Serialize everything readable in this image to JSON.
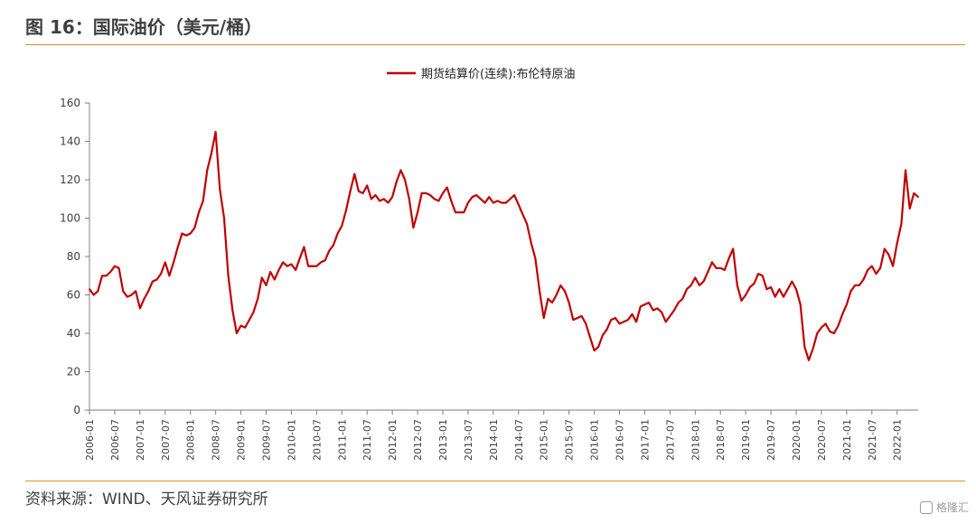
{
  "header": {
    "title": "图 16：国际油价（美元/桶）"
  },
  "footer": {
    "source": "资料来源：WIND、天风证券研究所",
    "watermark": "格隆汇"
  },
  "colors": {
    "accent_rule": "#E98A2E",
    "series": "#C00000",
    "axis": "#7f7f7f"
  },
  "chart_data": {
    "type": "line",
    "title": "",
    "xlabel": "",
    "ylabel": "",
    "ylim": [
      0,
      160
    ],
    "yticks": [
      0,
      20,
      40,
      60,
      80,
      100,
      120,
      140,
      160
    ],
    "xlim": [
      "2006-01",
      "2022-06"
    ],
    "xtick_labels": [
      "2006-01",
      "2006-07",
      "2007-01",
      "2007-07",
      "2008-01",
      "2008-07",
      "2009-01",
      "2009-07",
      "2010-01",
      "2010-07",
      "2011-01",
      "2011-07",
      "2012-01",
      "2012-07",
      "2013-01",
      "2013-07",
      "2014-01",
      "2014-07",
      "2015-01",
      "2015-07",
      "2016-01",
      "2016-07",
      "2017-01",
      "2017-07",
      "2018-01",
      "2018-07",
      "2019-01",
      "2019-07",
      "2020-01",
      "2020-07",
      "2021-01",
      "2021-07",
      "2022-01"
    ],
    "legend": {
      "position": "top-center"
    },
    "grid": false,
    "series": [
      {
        "name": "期货结算价(连续):布伦特原油",
        "color": "#C00000",
        "points": [
          [
            "2006-01",
            63
          ],
          [
            "2006-02",
            60
          ],
          [
            "2006-03",
            62
          ],
          [
            "2006-04",
            70
          ],
          [
            "2006-05",
            70
          ],
          [
            "2006-06",
            72
          ],
          [
            "2006-07",
            75
          ],
          [
            "2006-08",
            74
          ],
          [
            "2006-09",
            62
          ],
          [
            "2006-10",
            59
          ],
          [
            "2006-11",
            60
          ],
          [
            "2006-12",
            62
          ],
          [
            "2007-01",
            53
          ],
          [
            "2007-02",
            58
          ],
          [
            "2007-03",
            62
          ],
          [
            "2007-04",
            67
          ],
          [
            "2007-05",
            68
          ],
          [
            "2007-06",
            71
          ],
          [
            "2007-07",
            77
          ],
          [
            "2007-08",
            70
          ],
          [
            "2007-09",
            77
          ],
          [
            "2007-10",
            85
          ],
          [
            "2007-11",
            92
          ],
          [
            "2007-12",
            91
          ],
          [
            "2008-01",
            92
          ],
          [
            "2008-02",
            95
          ],
          [
            "2008-03",
            103
          ],
          [
            "2008-04",
            109
          ],
          [
            "2008-05",
            125
          ],
          [
            "2008-06",
            134
          ],
          [
            "2008-07",
            145
          ],
          [
            "2008-08",
            115
          ],
          [
            "2008-09",
            100
          ],
          [
            "2008-10",
            70
          ],
          [
            "2008-11",
            52
          ],
          [
            "2008-12",
            40
          ],
          [
            "2009-01",
            44
          ],
          [
            "2009-02",
            43
          ],
          [
            "2009-03",
            47
          ],
          [
            "2009-04",
            51
          ],
          [
            "2009-05",
            58
          ],
          [
            "2009-06",
            69
          ],
          [
            "2009-07",
            65
          ],
          [
            "2009-08",
            72
          ],
          [
            "2009-09",
            68
          ],
          [
            "2009-10",
            73
          ],
          [
            "2009-11",
            77
          ],
          [
            "2009-12",
            75
          ],
          [
            "2010-01",
            76
          ],
          [
            "2010-02",
            73
          ],
          [
            "2010-03",
            79
          ],
          [
            "2010-04",
            85
          ],
          [
            "2010-05",
            75
          ],
          [
            "2010-06",
            75
          ],
          [
            "2010-07",
            75
          ],
          [
            "2010-08",
            77
          ],
          [
            "2010-09",
            78
          ],
          [
            "2010-10",
            83
          ],
          [
            "2010-11",
            86
          ],
          [
            "2010-12",
            92
          ],
          [
            "2011-01",
            96
          ],
          [
            "2011-02",
            104
          ],
          [
            "2011-03",
            114
          ],
          [
            "2011-04",
            123
          ],
          [
            "2011-05",
            114
          ],
          [
            "2011-06",
            113
          ],
          [
            "2011-07",
            117
          ],
          [
            "2011-08",
            110
          ],
          [
            "2011-09",
            112
          ],
          [
            "2011-10",
            109
          ],
          [
            "2011-11",
            110
          ],
          [
            "2011-12",
            108
          ],
          [
            "2012-01",
            111
          ],
          [
            "2012-02",
            119
          ],
          [
            "2012-03",
            125
          ],
          [
            "2012-04",
            120
          ],
          [
            "2012-05",
            110
          ],
          [
            "2012-06",
            95
          ],
          [
            "2012-07",
            103
          ],
          [
            "2012-08",
            113
          ],
          [
            "2012-09",
            113
          ],
          [
            "2012-10",
            112
          ],
          [
            "2012-11",
            110
          ],
          [
            "2012-12",
            109
          ],
          [
            "2013-01",
            113
          ],
          [
            "2013-02",
            116
          ],
          [
            "2013-03",
            109
          ],
          [
            "2013-04",
            103
          ],
          [
            "2013-05",
            103
          ],
          [
            "2013-06",
            103
          ],
          [
            "2013-07",
            108
          ],
          [
            "2013-08",
            111
          ],
          [
            "2013-09",
            112
          ],
          [
            "2013-10",
            110
          ],
          [
            "2013-11",
            108
          ],
          [
            "2013-12",
            111
          ],
          [
            "2014-01",
            108
          ],
          [
            "2014-02",
            109
          ],
          [
            "2014-03",
            108
          ],
          [
            "2014-04",
            108
          ],
          [
            "2014-05",
            110
          ],
          [
            "2014-06",
            112
          ],
          [
            "2014-07",
            107
          ],
          [
            "2014-08",
            102
          ],
          [
            "2014-09",
            97
          ],
          [
            "2014-10",
            87
          ],
          [
            "2014-11",
            79
          ],
          [
            "2014-12",
            62
          ],
          [
            "2015-01",
            48
          ],
          [
            "2015-02",
            58
          ],
          [
            "2015-03",
            56
          ],
          [
            "2015-04",
            60
          ],
          [
            "2015-05",
            65
          ],
          [
            "2015-06",
            62
          ],
          [
            "2015-07",
            56
          ],
          [
            "2015-08",
            47
          ],
          [
            "2015-09",
            48
          ],
          [
            "2015-10",
            49
          ],
          [
            "2015-11",
            45
          ],
          [
            "2015-12",
            38
          ],
          [
            "2016-01",
            31
          ],
          [
            "2016-02",
            33
          ],
          [
            "2016-03",
            39
          ],
          [
            "2016-04",
            42
          ],
          [
            "2016-05",
            47
          ],
          [
            "2016-06",
            48
          ],
          [
            "2016-07",
            45
          ],
          [
            "2016-08",
            46
          ],
          [
            "2016-09",
            47
          ],
          [
            "2016-10",
            50
          ],
          [
            "2016-11",
            46
          ],
          [
            "2016-12",
            54
          ],
          [
            "2017-01",
            55
          ],
          [
            "2017-02",
            56
          ],
          [
            "2017-03",
            52
          ],
          [
            "2017-04",
            53
          ],
          [
            "2017-05",
            51
          ],
          [
            "2017-06",
            46
          ],
          [
            "2017-07",
            49
          ],
          [
            "2017-08",
            52
          ],
          [
            "2017-09",
            56
          ],
          [
            "2017-10",
            58
          ],
          [
            "2017-11",
            63
          ],
          [
            "2017-12",
            65
          ],
          [
            "2018-01",
            69
          ],
          [
            "2018-02",
            65
          ],
          [
            "2018-03",
            67
          ],
          [
            "2018-04",
            72
          ],
          [
            "2018-05",
            77
          ],
          [
            "2018-06",
            74
          ],
          [
            "2018-07",
            74
          ],
          [
            "2018-08",
            73
          ],
          [
            "2018-09",
            79
          ],
          [
            "2018-10",
            84
          ],
          [
            "2018-11",
            65
          ],
          [
            "2018-12",
            57
          ],
          [
            "2019-01",
            60
          ],
          [
            "2019-02",
            64
          ],
          [
            "2019-03",
            66
          ],
          [
            "2019-04",
            71
          ],
          [
            "2019-05",
            70
          ],
          [
            "2019-06",
            63
          ],
          [
            "2019-07",
            64
          ],
          [
            "2019-08",
            59
          ],
          [
            "2019-09",
            63
          ],
          [
            "2019-10",
            59
          ],
          [
            "2019-11",
            63
          ],
          [
            "2019-12",
            67
          ],
          [
            "2020-01",
            63
          ],
          [
            "2020-02",
            55
          ],
          [
            "2020-03",
            33
          ],
          [
            "2020-04",
            26
          ],
          [
            "2020-05",
            32
          ],
          [
            "2020-06",
            40
          ],
          [
            "2020-07",
            43
          ],
          [
            "2020-08",
            45
          ],
          [
            "2020-09",
            41
          ],
          [
            "2020-10",
            40
          ],
          [
            "2020-11",
            44
          ],
          [
            "2020-12",
            50
          ],
          [
            "2021-01",
            55
          ],
          [
            "2021-02",
            62
          ],
          [
            "2021-03",
            65
          ],
          [
            "2021-04",
            65
          ],
          [
            "2021-05",
            68
          ],
          [
            "2021-06",
            73
          ],
          [
            "2021-07",
            75
          ],
          [
            "2021-08",
            71
          ],
          [
            "2021-09",
            74
          ],
          [
            "2021-10",
            84
          ],
          [
            "2021-11",
            81
          ],
          [
            "2021-12",
            75
          ],
          [
            "2022-01",
            87
          ],
          [
            "2022-02",
            97
          ],
          [
            "2022-03",
            125
          ],
          [
            "2022-04",
            105
          ],
          [
            "2022-05",
            113
          ],
          [
            "2022-06",
            111
          ]
        ]
      }
    ]
  }
}
